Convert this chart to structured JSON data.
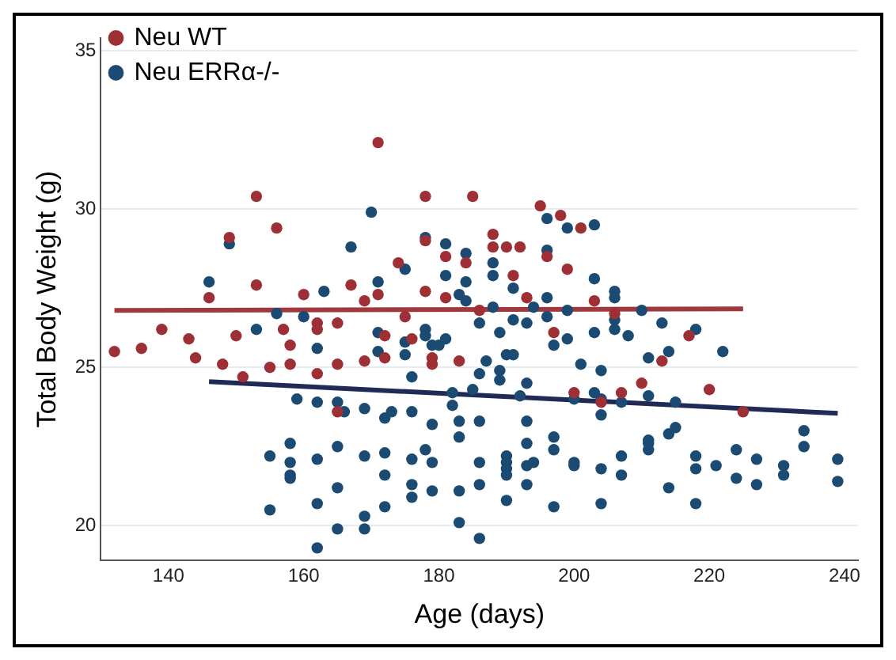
{
  "chart_data": {
    "type": "scatter",
    "xlabel": "Age (days)",
    "ylabel": "Total Body Weight (g)",
    "xlim": [
      130,
      242
    ],
    "ylim": [
      18.9,
      35.4
    ],
    "xticks": [
      140,
      160,
      180,
      200,
      220,
      240
    ],
    "yticks": [
      20,
      25,
      30,
      35
    ],
    "grid": "y",
    "legend": "top left",
    "marker": "circle",
    "series": [
      {
        "name": "Neu WT",
        "color": "#9e2f35",
        "type": "scatter",
        "x": [
          132,
          136,
          139,
          143,
          144,
          146,
          148,
          149,
          150,
          151,
          153,
          153,
          155,
          156,
          157,
          158,
          158,
          160,
          162,
          162,
          162,
          165,
          165,
          165,
          167,
          169,
          169,
          171,
          171,
          172,
          172,
          174,
          175,
          176,
          178,
          178,
          178,
          179,
          179,
          181,
          181,
          183,
          184,
          185,
          186,
          188,
          188,
          190,
          191,
          192,
          193,
          195,
          196,
          197,
          198,
          199,
          200,
          201,
          203,
          204,
          206,
          207,
          210,
          213,
          217,
          220,
          225
        ],
        "values": [
          25.5,
          25.6,
          26.2,
          25.9,
          25.3,
          27.2,
          25.1,
          29.1,
          26.0,
          24.7,
          30.4,
          27.6,
          25.0,
          29.4,
          26.2,
          25.7,
          25.1,
          27.3,
          26.4,
          26.2,
          24.8,
          26.4,
          25.1,
          23.6,
          27.6,
          27.1,
          25.2,
          32.1,
          27.3,
          26.0,
          25.3,
          28.3,
          26.6,
          25.9,
          30.4,
          29.0,
          27.4,
          25.3,
          25.1,
          28.5,
          27.2,
          25.2,
          28.3,
          30.4,
          26.8,
          29.2,
          28.8,
          28.8,
          27.9,
          28.8,
          27.2,
          30.1,
          28.5,
          26.1,
          29.8,
          28.1,
          24.2,
          29.4,
          27.1,
          23.9,
          26.7,
          24.2,
          24.5,
          25.2,
          26.0,
          24.3,
          23.6
        ]
      },
      {
        "name": "Neu ERRα-/-",
        "color": "#1b4a72",
        "type": "scatter",
        "x": [
          146,
          149,
          153,
          155,
          155,
          156,
          158,
          158,
          158,
          158,
          159,
          160,
          162,
          162,
          162,
          162,
          162,
          163,
          165,
          165,
          165,
          165,
          166,
          167,
          169,
          169,
          169,
          169,
          170,
          171,
          171,
          171,
          172,
          172,
          172,
          172,
          173,
          175,
          175,
          175,
          176,
          176,
          176,
          176,
          176,
          178,
          178,
          178,
          178,
          179,
          179,
          179,
          179,
          180,
          181,
          181,
          181,
          182,
          182,
          183,
          183,
          183,
          183,
          183,
          184,
          184,
          184,
          185,
          186,
          186,
          186,
          186,
          186,
          186,
          187,
          188,
          188,
          188,
          189,
          189,
          189,
          190,
          190,
          190,
          190,
          190,
          190,
          191,
          191,
          191,
          192,
          193,
          193,
          193,
          193,
          193,
          193,
          194,
          194,
          196,
          196,
          196,
          196,
          197,
          197,
          197,
          197,
          199,
          199,
          199,
          200,
          200,
          200,
          201,
          203,
          203,
          203,
          203,
          204,
          204,
          204,
          204,
          204,
          206,
          206,
          206,
          206,
          207,
          207,
          207,
          208,
          210,
          211,
          211,
          211,
          211,
          211,
          213,
          214,
          214,
          214,
          215,
          215,
          218,
          218,
          218,
          218,
          221,
          222,
          224,
          224,
          227,
          227,
          231,
          231,
          234,
          234,
          239,
          239
        ],
        "values": [
          27.7,
          28.9,
          26.2,
          22.2,
          20.5,
          26.7,
          22.6,
          22.0,
          21.6,
          21.5,
          24.0,
          26.6,
          25.6,
          23.9,
          22.1,
          20.7,
          19.3,
          27.4,
          23.9,
          22.5,
          21.2,
          19.9,
          23.6,
          28.8,
          23.7,
          22.2,
          20.3,
          19.9,
          29.9,
          27.7,
          26.1,
          25.5,
          23.4,
          22.3,
          21.6,
          20.6,
          23.6,
          28.1,
          25.8,
          25.4,
          24.7,
          23.6,
          22.1,
          21.3,
          20.9,
          29.1,
          26.2,
          26.0,
          22.4,
          25.7,
          23.2,
          22.0,
          21.1,
          25.7,
          28.9,
          27.9,
          25.9,
          24.2,
          23.8,
          27.3,
          23.3,
          22.8,
          21.1,
          20.1,
          28.6,
          27.7,
          27.1,
          24.3,
          26.4,
          24.8,
          23.3,
          22.0,
          21.3,
          19.6,
          25.2,
          28.3,
          27.9,
          26.9,
          26.1,
          24.9,
          24.6,
          25.4,
          22.2,
          22.0,
          21.8,
          21.6,
          20.8,
          27.5,
          26.5,
          25.4,
          24.1,
          26.4,
          24.5,
          23.3,
          22.6,
          21.9,
          21.3,
          26.9,
          22.0,
          29.7,
          28.7,
          27.2,
          26.6,
          25.7,
          22.8,
          22.4,
          20.6,
          29.4,
          26.8,
          25.9,
          24.0,
          22.0,
          21.9,
          25.1,
          29.5,
          27.8,
          26.1,
          24.2,
          24.9,
          24.0,
          23.5,
          21.8,
          20.7,
          27.4,
          27.2,
          26.5,
          26.2,
          23.9,
          22.2,
          21.6,
          26.0,
          26.8,
          25.3,
          24.1,
          22.7,
          22.6,
          22.4,
          26.4,
          25.5,
          21.2,
          22.9,
          23.9,
          23.1,
          26.2,
          22.2,
          21.8,
          20.7,
          21.9,
          25.5,
          22.4,
          21.5,
          22.1,
          21.3,
          21.9,
          21.6,
          23.0,
          22.5,
          22.1,
          21.4
        ]
      },
      {
        "color": "#a0393e",
        "type": "line",
        "marker": "none",
        "x": [
          132,
          225
        ],
        "values": [
          26.8,
          26.85
        ]
      },
      {
        "color": "#1f2a55",
        "type": "line",
        "marker": "none",
        "x": [
          146,
          239
        ],
        "values": [
          24.55,
          23.55
        ]
      }
    ]
  }
}
